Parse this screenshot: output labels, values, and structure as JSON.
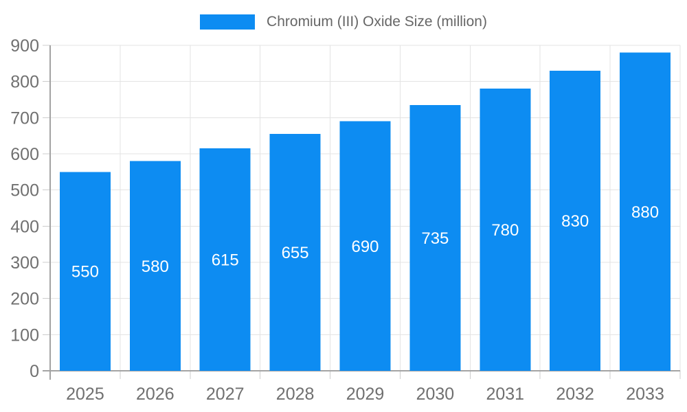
{
  "chart_data": {
    "type": "bar",
    "title": "Chromium (III) Oxide Size (million)",
    "legend": [
      "Chromium (III) Oxide Size (million)"
    ],
    "legend_position": "top-center",
    "categories": [
      "2025",
      "2026",
      "2027",
      "2028",
      "2029",
      "2030",
      "2031",
      "2032",
      "2033"
    ],
    "series": [
      {
        "name": "Chromium (III) Oxide Size (million)",
        "values": [
          550,
          580,
          615,
          655,
          690,
          735,
          780,
          830,
          880
        ]
      }
    ],
    "bar_labels": [
      550,
      580,
      615,
      655,
      690,
      735,
      780,
      830,
      880
    ],
    "xlabel": "",
    "ylabel": "",
    "ylim": [
      0,
      900
    ],
    "yticks": [
      0,
      100,
      200,
      300,
      400,
      500,
      600,
      700,
      800,
      900
    ],
    "grid": true,
    "colors": {
      "bar": "#0d8cf2",
      "bar_label_text": "#ffffff",
      "grid_line": "#e3e3e3",
      "axis_line": "#a3a3a3",
      "tick_mark": "#cccccc",
      "tick_label_text": "#707070",
      "legend_text": "#666666",
      "background": "#ffffff"
    }
  }
}
